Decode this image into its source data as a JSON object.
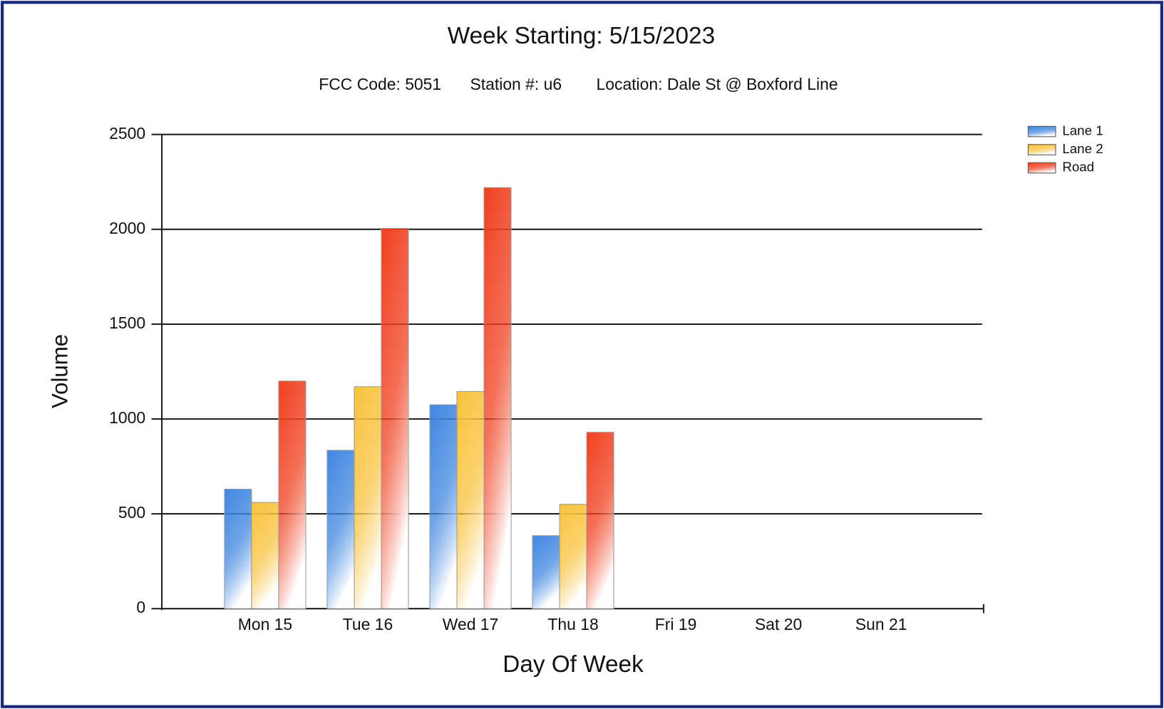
{
  "chart_data": {
    "type": "bar",
    "title": "Week Starting: 5/15/2023",
    "subtitle": [
      "FCC Code: 5051",
      "Station #: u6",
      "Location: Dale St @ Boxford Line"
    ],
    "x_label": "Day Of Week",
    "y_label": "Volume",
    "categories": [
      "Mon 15",
      "Tue 16",
      "Wed 17",
      "Thu 18",
      "Fri 19",
      "Sat 20",
      "Sun 21"
    ],
    "series": [
      {
        "name": "Lane 1",
        "color": "#3f86e0",
        "values": [
          630,
          835,
          1075,
          385,
          null,
          null,
          null
        ]
      },
      {
        "name": "Lane 2",
        "color": "#f8c23c",
        "values": [
          560,
          1170,
          1145,
          550,
          null,
          null,
          null
        ]
      },
      {
        "name": "Road",
        "color": "#f0401f",
        "values": [
          1200,
          2005,
          2220,
          930,
          null,
          null,
          null
        ]
      }
    ],
    "ylim": [
      0,
      2500
    ],
    "yticks": [
      0,
      500,
      1000,
      1500,
      2000,
      2500
    ],
    "grid": true,
    "legend": "right"
  }
}
